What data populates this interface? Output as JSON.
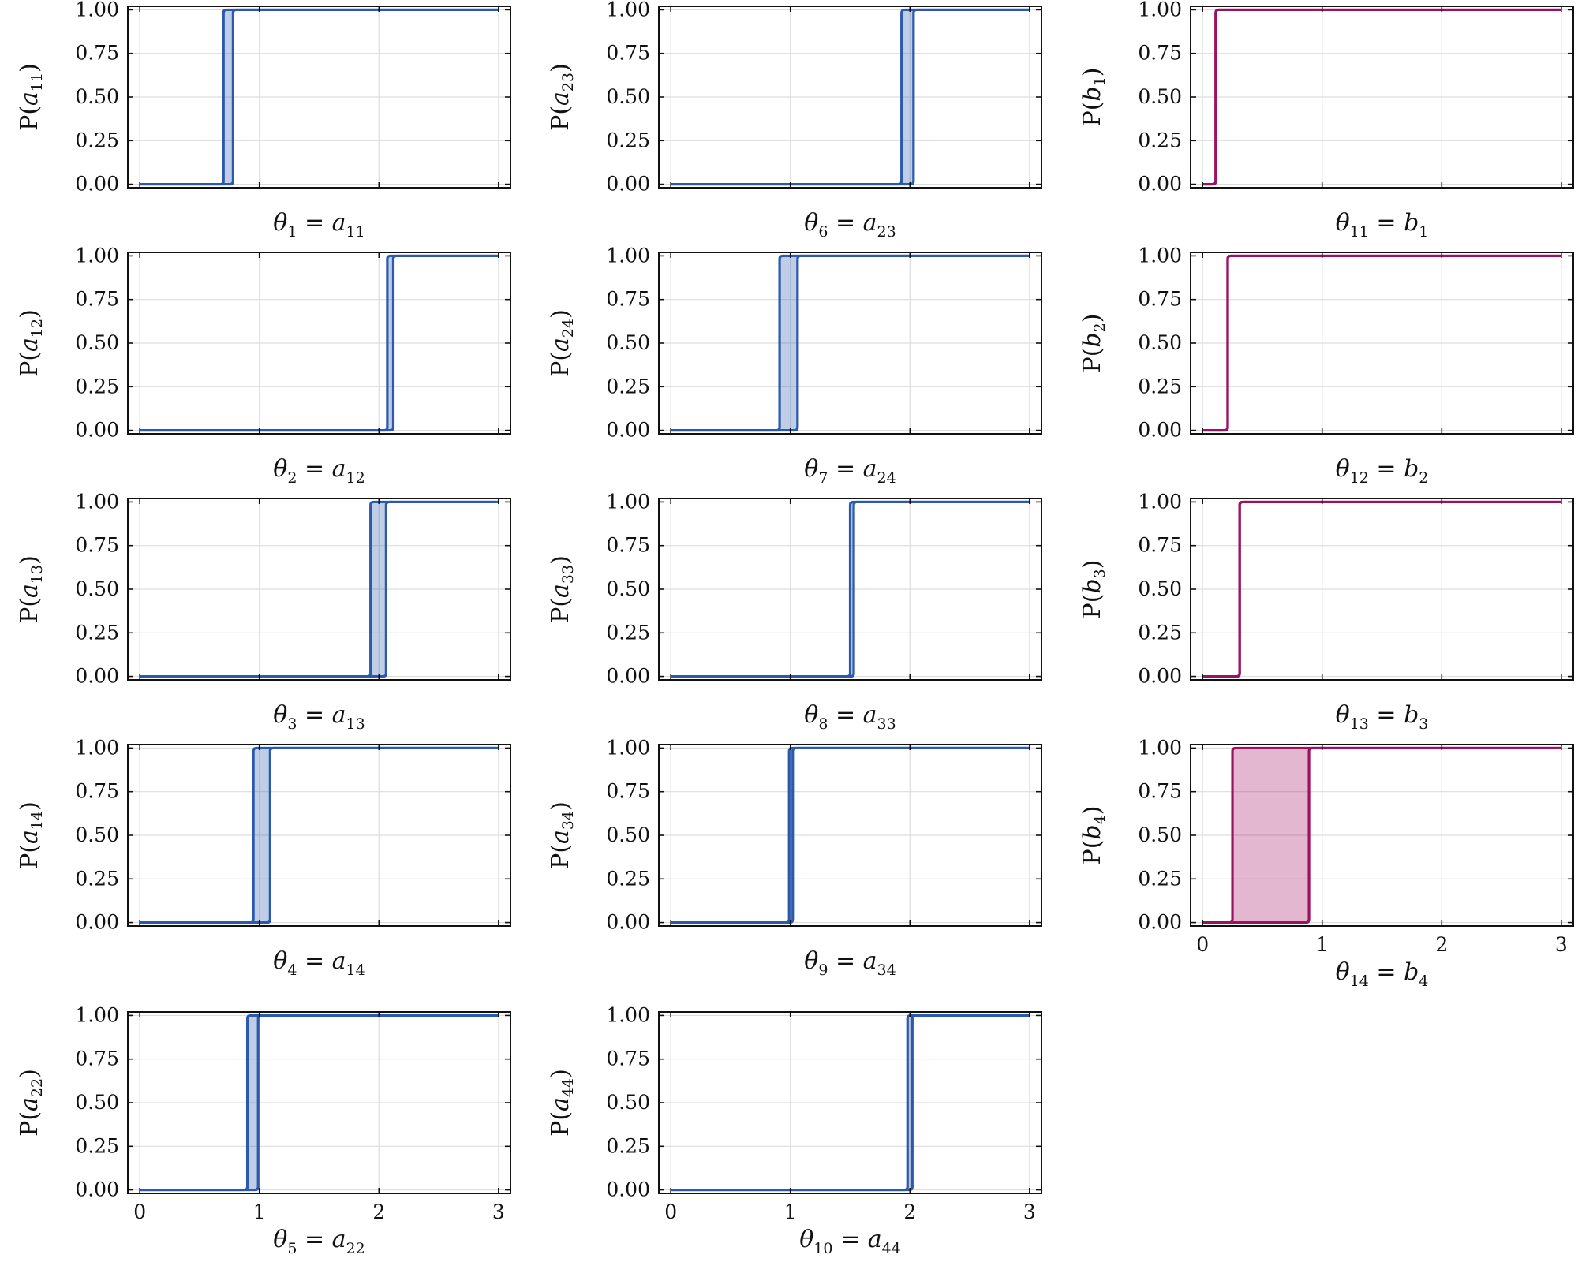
{
  "chart_data": [
    {
      "type": "area",
      "panel": [
        0,
        0
      ],
      "title": "",
      "xlim": [
        -0.1,
        3.1
      ],
      "ylim": [
        -0.02,
        1.02
      ],
      "yticks": [
        "0.00",
        "0.25",
        "0.50",
        "0.75",
        "1.00"
      ],
      "xticks": [],
      "color": "#2b59ad",
      "lower_step": 0.7,
      "upper_step": 0.78,
      "ylabel_prefix": "P(",
      "ylabel_var": "a",
      "ylabel_sub": "11",
      "xlabel_sym": "θ",
      "xlabel_sym_sub": "1",
      "xlabel_eq": " =  ",
      "xlabel_var": "a",
      "xlabel_sub": "11"
    },
    {
      "type": "area",
      "panel": [
        0,
        1
      ],
      "title": "",
      "xlim": [
        -0.1,
        3.1
      ],
      "ylim": [
        -0.02,
        1.02
      ],
      "yticks": [
        "0.00",
        "0.25",
        "0.50",
        "0.75",
        "1.00"
      ],
      "xticks": [],
      "color": "#2b59ad",
      "lower_step": 1.93,
      "upper_step": 2.03,
      "ylabel_prefix": "P(",
      "ylabel_var": "a",
      "ylabel_sub": "23",
      "xlabel_sym": "θ",
      "xlabel_sym_sub": "6",
      "xlabel_eq": " =  ",
      "xlabel_var": "a",
      "xlabel_sub": "23"
    },
    {
      "type": "area",
      "panel": [
        0,
        2
      ],
      "title": "",
      "xlim": [
        -0.1,
        3.1
      ],
      "ylim": [
        -0.02,
        1.02
      ],
      "yticks": [
        "0.00",
        "0.25",
        "0.50",
        "0.75",
        "1.00"
      ],
      "xticks": [],
      "color": "#9e1060",
      "lower_step": 0.11,
      "upper_step": 0.11,
      "ylabel_prefix": "P(",
      "ylabel_var": "b",
      "ylabel_sub": "1",
      "xlabel_sym": "θ",
      "xlabel_sym_sub": "11",
      "xlabel_eq": " =  ",
      "xlabel_var": "b",
      "xlabel_sub": "1"
    },
    {
      "type": "area",
      "panel": [
        1,
        0
      ],
      "title": "",
      "xlim": [
        -0.1,
        3.1
      ],
      "ylim": [
        -0.02,
        1.02
      ],
      "yticks": [
        "0.00",
        "0.25",
        "0.50",
        "0.75",
        "1.00"
      ],
      "xticks": [],
      "color": "#2b59ad",
      "lower_step": 2.07,
      "upper_step": 2.12,
      "ylabel_prefix": "P(",
      "ylabel_var": "a",
      "ylabel_sub": "12",
      "xlabel_sym": "θ",
      "xlabel_sym_sub": "2",
      "xlabel_eq": " =  ",
      "xlabel_var": "a",
      "xlabel_sub": "12"
    },
    {
      "type": "area",
      "panel": [
        1,
        1
      ],
      "title": "",
      "xlim": [
        -0.1,
        3.1
      ],
      "ylim": [
        -0.02,
        1.02
      ],
      "yticks": [
        "0.00",
        "0.25",
        "0.50",
        "0.75",
        "1.00"
      ],
      "xticks": [],
      "color": "#2b59ad",
      "lower_step": 0.91,
      "upper_step": 1.06,
      "ylabel_prefix": "P(",
      "ylabel_var": "a",
      "ylabel_sub": "24",
      "xlabel_sym": "θ",
      "xlabel_sym_sub": "7",
      "xlabel_eq": " =  ",
      "xlabel_var": "a",
      "xlabel_sub": "24"
    },
    {
      "type": "area",
      "panel": [
        1,
        2
      ],
      "title": "",
      "xlim": [
        -0.1,
        3.1
      ],
      "ylim": [
        -0.02,
        1.02
      ],
      "yticks": [
        "0.00",
        "0.25",
        "0.50",
        "0.75",
        "1.00"
      ],
      "xticks": [],
      "color": "#9e1060",
      "lower_step": 0.21,
      "upper_step": 0.21,
      "ylabel_prefix": "P(",
      "ylabel_var": "b",
      "ylabel_sub": "2",
      "xlabel_sym": "θ",
      "xlabel_sym_sub": "12",
      "xlabel_eq": " =  ",
      "xlabel_var": "b",
      "xlabel_sub": "2"
    },
    {
      "type": "area",
      "panel": [
        2,
        0
      ],
      "title": "",
      "xlim": [
        -0.1,
        3.1
      ],
      "ylim": [
        -0.02,
        1.02
      ],
      "yticks": [
        "0.00",
        "0.25",
        "0.50",
        "0.75",
        "1.00"
      ],
      "xticks": [],
      "color": "#2b59ad",
      "lower_step": 1.93,
      "upper_step": 2.06,
      "ylabel_prefix": "P(",
      "ylabel_var": "a",
      "ylabel_sub": "13",
      "xlabel_sym": "θ",
      "xlabel_sym_sub": "3",
      "xlabel_eq": " =  ",
      "xlabel_var": "a",
      "xlabel_sub": "13"
    },
    {
      "type": "area",
      "panel": [
        2,
        1
      ],
      "title": "",
      "xlim": [
        -0.1,
        3.1
      ],
      "ylim": [
        -0.02,
        1.02
      ],
      "yticks": [
        "0.00",
        "0.25",
        "0.50",
        "0.75",
        "1.00"
      ],
      "xticks": [],
      "color": "#2b59ad",
      "lower_step": 1.5,
      "upper_step": 1.53,
      "ylabel_prefix": "P(",
      "ylabel_var": "a",
      "ylabel_sub": "33",
      "xlabel_sym": "θ",
      "xlabel_sym_sub": "8",
      "xlabel_eq": " =  ",
      "xlabel_var": "a",
      "xlabel_sub": "33"
    },
    {
      "type": "area",
      "panel": [
        2,
        2
      ],
      "title": "",
      "xlim": [
        -0.1,
        3.1
      ],
      "ylim": [
        -0.02,
        1.02
      ],
      "yticks": [
        "0.00",
        "0.25",
        "0.50",
        "0.75",
        "1.00"
      ],
      "xticks": [],
      "color": "#9e1060",
      "lower_step": 0.31,
      "upper_step": 0.31,
      "ylabel_prefix": "P(",
      "ylabel_var": "b",
      "ylabel_sub": "3",
      "xlabel_sym": "θ",
      "xlabel_sym_sub": "13",
      "xlabel_eq": " =  ",
      "xlabel_var": "b",
      "xlabel_sub": "3"
    },
    {
      "type": "area",
      "panel": [
        3,
        0
      ],
      "title": "",
      "xlim": [
        -0.1,
        3.1
      ],
      "ylim": [
        -0.02,
        1.02
      ],
      "yticks": [
        "0.00",
        "0.25",
        "0.50",
        "0.75",
        "1.00"
      ],
      "xticks": [],
      "color": "#2b59ad",
      "lower_step": 0.95,
      "upper_step": 1.09,
      "ylabel_prefix": "P(",
      "ylabel_var": "a",
      "ylabel_sub": "14",
      "xlabel_sym": "θ",
      "xlabel_sym_sub": "4",
      "xlabel_eq": " =  ",
      "xlabel_var": "a",
      "xlabel_sub": "14"
    },
    {
      "type": "area",
      "panel": [
        3,
        1
      ],
      "title": "",
      "xlim": [
        -0.1,
        3.1
      ],
      "ylim": [
        -0.02,
        1.02
      ],
      "yticks": [
        "0.00",
        "0.25",
        "0.50",
        "0.75",
        "1.00"
      ],
      "xticks": [],
      "color": "#2b59ad",
      "lower_step": 0.99,
      "upper_step": 1.02,
      "ylabel_prefix": "P(",
      "ylabel_var": "a",
      "ylabel_sub": "34",
      "xlabel_sym": "θ",
      "xlabel_sym_sub": "9",
      "xlabel_eq": " =  ",
      "xlabel_var": "a",
      "xlabel_sub": "34"
    },
    {
      "type": "area",
      "panel": [
        3,
        2
      ],
      "title": "",
      "xlim": [
        -0.1,
        3.1
      ],
      "ylim": [
        -0.02,
        1.02
      ],
      "yticks": [
        "0.00",
        "0.25",
        "0.50",
        "0.75",
        "1.00"
      ],
      "xticks": [
        "0",
        "1",
        "2",
        "3"
      ],
      "color": "#9e1060",
      "lower_step": 0.25,
      "upper_step": 0.89,
      "ylabel_prefix": "P(",
      "ylabel_var": "b",
      "ylabel_sub": "4",
      "xlabel_sym": "θ",
      "xlabel_sym_sub": "14",
      "xlabel_eq": " =  ",
      "xlabel_var": "b",
      "xlabel_sub": "4"
    },
    {
      "type": "area",
      "panel": [
        4,
        0
      ],
      "title": "",
      "xlim": [
        -0.1,
        3.1
      ],
      "ylim": [
        -0.02,
        1.02
      ],
      "yticks": [
        "0.00",
        "0.25",
        "0.50",
        "0.75",
        "1.00"
      ],
      "xticks": [
        "0",
        "1",
        "2",
        "3"
      ],
      "color": "#2b59ad",
      "lower_step": 0.9,
      "upper_step": 0.99,
      "ylabel_prefix": "P(",
      "ylabel_var": "a",
      "ylabel_sub": "22",
      "xlabel_sym": "θ",
      "xlabel_sym_sub": "5",
      "xlabel_eq": " =  ",
      "xlabel_var": "a",
      "xlabel_sub": "22"
    },
    {
      "type": "area",
      "panel": [
        4,
        1
      ],
      "title": "",
      "xlim": [
        -0.1,
        3.1
      ],
      "ylim": [
        -0.02,
        1.02
      ],
      "yticks": [
        "0.00",
        "0.25",
        "0.50",
        "0.75",
        "1.00"
      ],
      "xticks": [
        "0",
        "1",
        "2",
        "3"
      ],
      "color": "#2b59ad",
      "lower_step": 1.98,
      "upper_step": 2.02,
      "ylabel_prefix": "P(",
      "ylabel_var": "a",
      "ylabel_sub": "44",
      "xlabel_sym": "θ",
      "xlabel_sym_sub": "10",
      "xlabel_eq": " =  ",
      "xlabel_var": "a",
      "xlabel_sub": "44"
    }
  ],
  "grid": true
}
